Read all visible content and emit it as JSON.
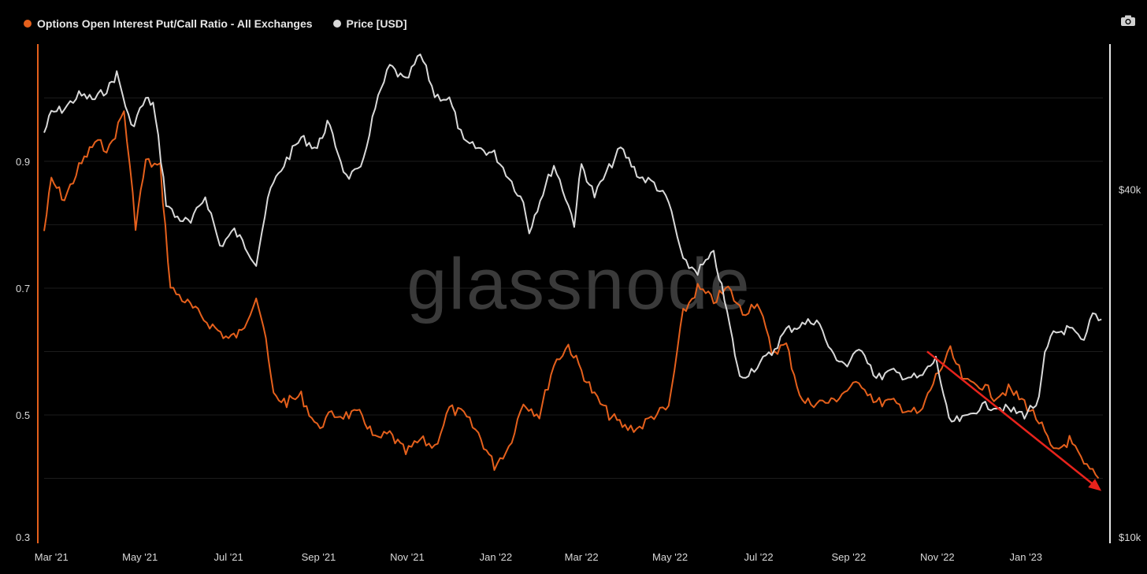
{
  "legend": [
    {
      "label": "Options Open Interest Put/Call Ratio - All Exchanges",
      "color": "#e5601c"
    },
    {
      "label": "Price [USD]",
      "color": "#d9d9d9"
    }
  ],
  "watermark": "glassnode",
  "toolbar": {
    "camera_icon": "camera-icon"
  },
  "chart_data": {
    "type": "line",
    "x_tick_labels": [
      "Mar '21",
      "May '21",
      "Jul '21",
      "Sep '21",
      "Nov '21",
      "Jan '22",
      "Mar '22",
      "May '22",
      "Jul '22",
      "Sep '22",
      "Nov '22",
      "Jan '23"
    ],
    "x_tick_dates": [
      "2021-03-01",
      "2021-05-01",
      "2021-07-01",
      "2021-09-01",
      "2021-11-01",
      "2022-01-01",
      "2022-03-01",
      "2022-05-01",
      "2022-07-01",
      "2022-09-01",
      "2022-11-01",
      "2023-01-01"
    ],
    "x_range": [
      "2021-02-24",
      "2023-02-23"
    ],
    "left_axis": {
      "ticks": [
        0.3,
        0.5,
        0.7,
        0.9
      ],
      "tick_labels": [
        "0.3",
        "0.5",
        "0.7",
        "0.9"
      ],
      "range": [
        0.3,
        1.08
      ]
    },
    "right_axis": {
      "ticks": [
        10000,
        40000
      ],
      "tick_labels": [
        "$10k",
        "$40k"
      ],
      "scale": "log",
      "range": [
        10000,
        70000
      ]
    },
    "grid": true,
    "legend_position": "top-left",
    "series": [
      {
        "name": "Options Open Interest Put/Call Ratio - All Exchanges",
        "axis": "left",
        "color": "#e5601c",
        "points": [
          [
            "2021-02-24",
            0.79
          ],
          [
            "2021-03-01",
            0.87
          ],
          [
            "2021-03-10",
            0.84
          ],
          [
            "2021-03-20",
            0.89
          ],
          [
            "2021-03-31",
            0.93
          ],
          [
            "2021-04-10",
            0.92
          ],
          [
            "2021-04-20",
            0.98
          ],
          [
            "2021-04-28",
            0.8
          ],
          [
            "2021-05-05",
            0.9
          ],
          [
            "2021-05-15",
            0.89
          ],
          [
            "2021-05-22",
            0.7
          ],
          [
            "2021-06-01",
            0.68
          ],
          [
            "2021-06-10",
            0.66
          ],
          [
            "2021-06-20",
            0.64
          ],
          [
            "2021-07-01",
            0.62
          ],
          [
            "2021-07-10",
            0.63
          ],
          [
            "2021-07-20",
            0.69
          ],
          [
            "2021-07-25",
            0.64
          ],
          [
            "2021-08-01",
            0.53
          ],
          [
            "2021-08-10",
            0.52
          ],
          [
            "2021-08-20",
            0.53
          ],
          [
            "2021-08-31",
            0.48
          ],
          [
            "2021-09-10",
            0.5
          ],
          [
            "2021-09-20",
            0.5
          ],
          [
            "2021-10-01",
            0.5
          ],
          [
            "2021-10-10",
            0.46
          ],
          [
            "2021-10-20",
            0.47
          ],
          [
            "2021-10-31",
            0.44
          ],
          [
            "2021-11-10",
            0.46
          ],
          [
            "2021-11-20",
            0.45
          ],
          [
            "2021-11-30",
            0.51
          ],
          [
            "2021-12-10",
            0.5
          ],
          [
            "2021-12-20",
            0.47
          ],
          [
            "2021-12-31",
            0.42
          ],
          [
            "2022-01-10",
            0.45
          ],
          [
            "2022-01-20",
            0.52
          ],
          [
            "2022-01-31",
            0.5
          ],
          [
            "2022-02-10",
            0.58
          ],
          [
            "2022-02-20",
            0.61
          ],
          [
            "2022-03-01",
            0.57
          ],
          [
            "2022-03-10",
            0.53
          ],
          [
            "2022-03-20",
            0.5
          ],
          [
            "2022-03-31",
            0.48
          ],
          [
            "2022-04-10",
            0.48
          ],
          [
            "2022-04-20",
            0.5
          ],
          [
            "2022-04-30",
            0.51
          ],
          [
            "2022-05-10",
            0.66
          ],
          [
            "2022-05-20",
            0.7
          ],
          [
            "2022-05-31",
            0.68
          ],
          [
            "2022-06-10",
            0.7
          ],
          [
            "2022-06-20",
            0.66
          ],
          [
            "2022-06-30",
            0.68
          ],
          [
            "2022-07-10",
            0.6
          ],
          [
            "2022-07-20",
            0.61
          ],
          [
            "2022-07-31",
            0.52
          ],
          [
            "2022-08-10",
            0.52
          ],
          [
            "2022-08-20",
            0.52
          ],
          [
            "2022-08-31",
            0.54
          ],
          [
            "2022-09-10",
            0.55
          ],
          [
            "2022-09-20",
            0.52
          ],
          [
            "2022-09-30",
            0.52
          ],
          [
            "2022-10-10",
            0.51
          ],
          [
            "2022-10-20",
            0.5
          ],
          [
            "2022-10-31",
            0.56
          ],
          [
            "2022-11-10",
            0.6
          ],
          [
            "2022-11-20",
            0.55
          ],
          [
            "2022-11-30",
            0.55
          ],
          [
            "2022-12-10",
            0.53
          ],
          [
            "2022-12-20",
            0.54
          ],
          [
            "2022-12-31",
            0.52
          ],
          [
            "2023-01-10",
            0.49
          ],
          [
            "2023-01-20",
            0.44
          ],
          [
            "2023-01-31",
            0.46
          ],
          [
            "2023-02-10",
            0.42
          ],
          [
            "2023-02-20",
            0.4
          ]
        ]
      },
      {
        "name": "Price [USD]",
        "axis": "right",
        "color": "#d9d9d9",
        "points": [
          [
            "2021-02-24",
            50000
          ],
          [
            "2021-03-01",
            54000
          ],
          [
            "2021-03-10",
            55000
          ],
          [
            "2021-03-20",
            58000
          ],
          [
            "2021-03-31",
            57000
          ],
          [
            "2021-04-10",
            60000
          ],
          [
            "2021-04-15",
            63000
          ],
          [
            "2021-04-25",
            51000
          ],
          [
            "2021-05-05",
            57000
          ],
          [
            "2021-05-10",
            56000
          ],
          [
            "2021-05-19",
            38000
          ],
          [
            "2021-05-25",
            36000
          ],
          [
            "2021-06-05",
            35000
          ],
          [
            "2021-06-15",
            39000
          ],
          [
            "2021-06-25",
            32000
          ],
          [
            "2021-07-05",
            34000
          ],
          [
            "2021-07-20",
            30000
          ],
          [
            "2021-07-30",
            40000
          ],
          [
            "2021-08-10",
            45000
          ],
          [
            "2021-08-20",
            49000
          ],
          [
            "2021-08-31",
            47000
          ],
          [
            "2021-09-07",
            52000
          ],
          [
            "2021-09-20",
            42000
          ],
          [
            "2021-09-30",
            43000
          ],
          [
            "2021-10-10",
            55000
          ],
          [
            "2021-10-20",
            65000
          ],
          [
            "2021-10-31",
            61000
          ],
          [
            "2021-11-10",
            68000
          ],
          [
            "2021-11-20",
            58000
          ],
          [
            "2021-11-30",
            57000
          ],
          [
            "2021-12-10",
            48000
          ],
          [
            "2021-12-20",
            47000
          ],
          [
            "2021-12-31",
            46000
          ],
          [
            "2022-01-10",
            42000
          ],
          [
            "2022-01-20",
            38000
          ],
          [
            "2022-01-24",
            34000
          ],
          [
            "2022-02-10",
            44000
          ],
          [
            "2022-02-24",
            35000
          ],
          [
            "2022-03-01",
            44000
          ],
          [
            "2022-03-10",
            39000
          ],
          [
            "2022-03-28",
            47000
          ],
          [
            "2022-04-10",
            42000
          ],
          [
            "2022-04-20",
            41000
          ],
          [
            "2022-04-30",
            38000
          ],
          [
            "2022-05-10",
            30000
          ],
          [
            "2022-05-20",
            29000
          ],
          [
            "2022-05-31",
            31000
          ],
          [
            "2022-06-13",
            22000
          ],
          [
            "2022-06-18",
            19000
          ],
          [
            "2022-06-30",
            20000
          ],
          [
            "2022-07-10",
            21000
          ],
          [
            "2022-07-20",
            23000
          ],
          [
            "2022-07-31",
            23500
          ],
          [
            "2022-08-10",
            24000
          ],
          [
            "2022-08-20",
            21000
          ],
          [
            "2022-08-31",
            20000
          ],
          [
            "2022-09-10",
            21500
          ],
          [
            "2022-09-20",
            19000
          ],
          [
            "2022-09-30",
            19500
          ],
          [
            "2022-10-10",
            19200
          ],
          [
            "2022-10-20",
            19000
          ],
          [
            "2022-10-31",
            20500
          ],
          [
            "2022-11-09",
            16000
          ],
          [
            "2022-11-20",
            16200
          ],
          [
            "2022-11-30",
            17000
          ],
          [
            "2022-12-10",
            17100
          ],
          [
            "2022-12-20",
            16800
          ],
          [
            "2022-12-31",
            16500
          ],
          [
            "2023-01-10",
            17400
          ],
          [
            "2023-01-14",
            20800
          ],
          [
            "2023-01-20",
            22700
          ],
          [
            "2023-01-31",
            23100
          ],
          [
            "2023-02-10",
            21800
          ],
          [
            "2023-02-16",
            24500
          ],
          [
            "2023-02-22",
            24000
          ]
        ]
      }
    ],
    "annotations": [
      {
        "type": "arrow",
        "color": "#e8231c",
        "from": [
          "2022-10-25",
          0.6
        ],
        "to": [
          "2023-02-22",
          0.38
        ]
      }
    ]
  }
}
